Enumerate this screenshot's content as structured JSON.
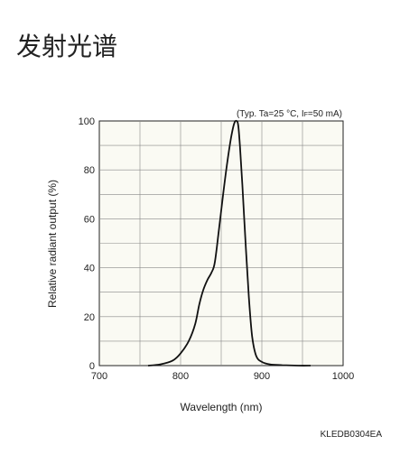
{
  "page": {
    "title": "发射光谱",
    "code": "KLEDB0304EA"
  },
  "chart_data": {
    "type": "line",
    "title": "",
    "condition": "(Typ. Ta=25 °C, I",
    "condition_sub": "F",
    "condition_tail": "=50 mA)",
    "xlabel": "Wavelength (nm)",
    "ylabel": "Relative radiant output (%)",
    "xlim": [
      700,
      1000
    ],
    "ylim": [
      0,
      100
    ],
    "xticks": [
      700,
      800,
      900,
      1000
    ],
    "yticks": [
      0,
      20,
      40,
      60,
      80,
      100
    ],
    "grid": true,
    "series": [
      {
        "x": [
          760,
          775,
          790,
          800,
          810,
          818,
          823,
          828,
          833,
          838,
          842,
          847,
          852,
          857,
          862,
          866,
          869,
          871,
          873,
          876,
          880,
          884,
          888,
          893,
          900,
          910,
          925,
          945,
          960
        ],
        "y": [
          0,
          0.5,
          2,
          5,
          10,
          17,
          25,
          31,
          35,
          38,
          42,
          55,
          69,
          82,
          93,
          99,
          100,
          98,
          90,
          74,
          50,
          28,
          12,
          4,
          1.5,
          0.5,
          0.2,
          0,
          0
        ]
      }
    ]
  }
}
